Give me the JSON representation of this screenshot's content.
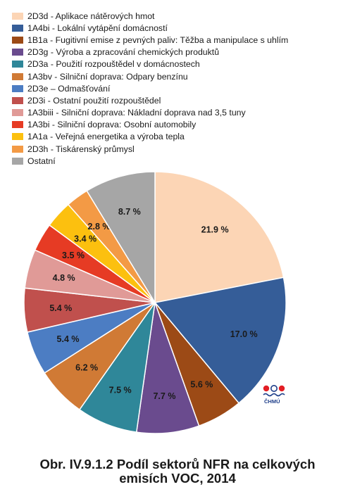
{
  "chart_data": {
    "type": "pie",
    "title": "Obr. IV.9.1.2  Podíl sektorů NFR na celkových emisích VOC, 2014",
    "title_lines": [
      "Obr. IV.9.1.2  Podíl sektorů NFR na celkových",
      "emisích VOC, 2014"
    ],
    "slices": [
      {
        "name": "2D3d - Aplikace nátěrových hmot",
        "value": 21.9,
        "label": "21.9 %",
        "color": "#fcd5b5"
      },
      {
        "name": "1A4bi - Lokální vytápění domácností",
        "value": 17.0,
        "label": "17.0 %",
        "color": "#355d98"
      },
      {
        "name": "1B1a - Fugitivní emise z pevných paliv: Těžba a manipulace s uhlím",
        "value": 5.6,
        "label": "5.6 %",
        "color": "#9c4a16"
      },
      {
        "name": "2D3g - Výroba a zpracování chemických produktů",
        "value": 7.7,
        "label": "7.7 %",
        "color": "#6a4b8e"
      },
      {
        "name": "2D3a - Použití rozpouštědel v domácnostech",
        "value": 7.5,
        "label": "7.5 %",
        "color": "#2f8799"
      },
      {
        "name": "1A3bv - Silniční doprava: Odpary benzínu",
        "value": 6.2,
        "label": "6.2 %",
        "color": "#d07a35"
      },
      {
        "name": "2D3e – Odmašťování",
        "value": 5.4,
        "label": "5.4 %",
        "color": "#4c7dc3"
      },
      {
        "name": "2D3i - Ostatní použití rozpouštědel",
        "value": 5.4,
        "label": "5.4 %",
        "color": "#c0504d"
      },
      {
        "name": "1A3biii - Silniční doprava: Nákladní doprava nad 3,5 tuny",
        "value": 4.8,
        "label": "4.8 %",
        "color": "#e09a97"
      },
      {
        "name": "1A3bi - Silniční doprava: Osobní automobily",
        "value": 3.5,
        "label": "3.5 %",
        "color": "#e63b24"
      },
      {
        "name": "1A1a - Veřejná energetika a výroba tepla",
        "value": 3.4,
        "label": "3.4 %",
        "color": "#fcc00f"
      },
      {
        "name": "2D3h - Tiskárenský průmysl",
        "value": 2.8,
        "label": "2.8 %",
        "color": "#f39a45"
      },
      {
        "name": "Ostatní",
        "value": 8.7,
        "label": "8.7 %",
        "color": "#a6a6a6"
      }
    ],
    "legend_position": "top-left",
    "start_direction": "12 o'clock, clockwise"
  },
  "logo": {
    "text": "ČHMÚ",
    "colors": [
      "#e31e24",
      "#1f3f8a"
    ]
  }
}
